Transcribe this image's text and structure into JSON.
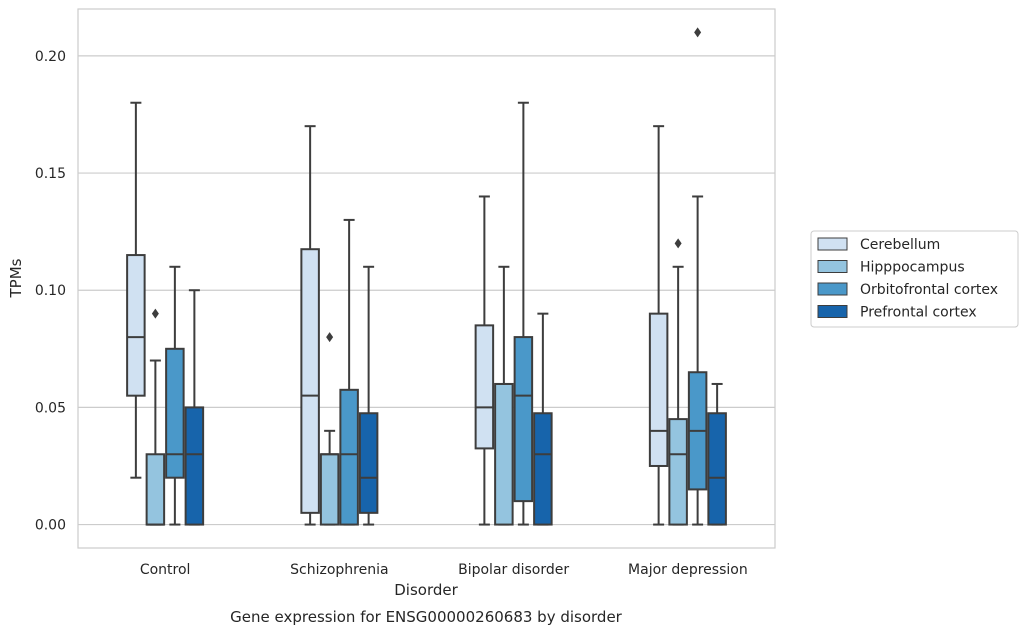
{
  "chart_data": {
    "type": "box",
    "title": "",
    "caption": "Gene expression for ENSG00000260683 by disorder",
    "xlabel": "Disorder",
    "ylabel": "TPMs",
    "ylim": [
      -0.01,
      0.22
    ],
    "yticks": [
      0.0,
      0.05,
      0.1,
      0.15,
      0.2
    ],
    "ytick_labels": [
      "0.00",
      "0.05",
      "0.10",
      "0.15",
      "0.20"
    ],
    "grid": true,
    "legend_position": "right",
    "categories": [
      "Control",
      "Schizophrenia",
      "Bipolar disorder",
      "Major depression"
    ],
    "series": [
      {
        "name": "Cerebellum",
        "color": "#d0e1f2",
        "boxes": [
          {
            "whisker_low": 0.02,
            "q1": 0.055,
            "median": 0.08,
            "q3": 0.115,
            "whisker_high": 0.18,
            "outliers": []
          },
          {
            "whisker_low": 0.0,
            "q1": 0.005,
            "median": 0.055,
            "q3": 0.1175,
            "whisker_high": 0.17,
            "outliers": []
          },
          {
            "whisker_low": 0.0,
            "q1": 0.0325,
            "median": 0.05,
            "q3": 0.085,
            "whisker_high": 0.14,
            "outliers": []
          },
          {
            "whisker_low": 0.0,
            "q1": 0.025,
            "median": 0.04,
            "q3": 0.09,
            "whisker_high": 0.17,
            "outliers": []
          }
        ]
      },
      {
        "name": "Hipppocampus",
        "color": "#94c4df",
        "boxes": [
          {
            "whisker_low": 0.0,
            "q1": 0.0,
            "median": 0.0,
            "q3": 0.03,
            "whisker_high": 0.07,
            "outliers": [
              0.09
            ]
          },
          {
            "whisker_low": 0.0,
            "q1": 0.0,
            "median": 0.03,
            "q3": 0.03,
            "whisker_high": 0.04,
            "outliers": [
              0.08
            ]
          },
          {
            "whisker_low": 0.0,
            "q1": 0.0,
            "median": 0.06,
            "q3": 0.06,
            "whisker_high": 0.11,
            "outliers": []
          },
          {
            "whisker_low": 0.0,
            "q1": 0.0,
            "median": 0.03,
            "q3": 0.045,
            "whisker_high": 0.11,
            "outliers": [
              0.12
            ]
          }
        ]
      },
      {
        "name": "Orbitofrontal cortex",
        "color": "#4a98c9",
        "boxes": [
          {
            "whisker_low": 0.0,
            "q1": 0.02,
            "median": 0.03,
            "q3": 0.075,
            "whisker_high": 0.11,
            "outliers": []
          },
          {
            "whisker_low": 0.0,
            "q1": 0.0,
            "median": 0.03,
            "q3": 0.0575,
            "whisker_high": 0.13,
            "outliers": []
          },
          {
            "whisker_low": 0.0,
            "q1": 0.01,
            "median": 0.055,
            "q3": 0.08,
            "whisker_high": 0.18,
            "outliers": []
          },
          {
            "whisker_low": 0.0,
            "q1": 0.015,
            "median": 0.04,
            "q3": 0.065,
            "whisker_high": 0.14,
            "outliers": [
              0.21
            ]
          }
        ]
      },
      {
        "name": "Prefrontal cortex",
        "color": "#1764ab",
        "boxes": [
          {
            "whisker_low": 0.0,
            "q1": 0.0,
            "median": 0.03,
            "q3": 0.05,
            "whisker_high": 0.1,
            "outliers": []
          },
          {
            "whisker_low": 0.0,
            "q1": 0.005,
            "median": 0.02,
            "q3": 0.0475,
            "whisker_high": 0.11,
            "outliers": []
          },
          {
            "whisker_low": 0.0,
            "q1": 0.0,
            "median": 0.03,
            "q3": 0.0475,
            "whisker_high": 0.09,
            "outliers": []
          },
          {
            "whisker_low": 0.0,
            "q1": 0.0,
            "median": 0.02,
            "q3": 0.0475,
            "whisker_high": 0.06,
            "outliers": []
          }
        ]
      }
    ]
  }
}
